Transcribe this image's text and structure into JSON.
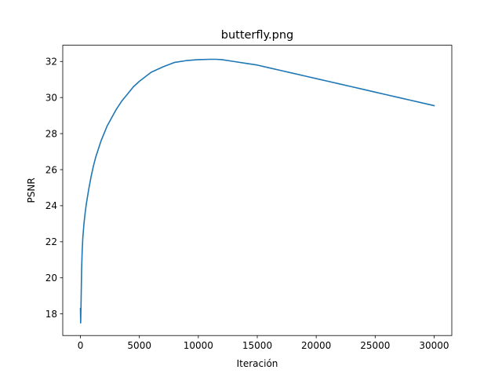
{
  "chart_data": {
    "type": "line",
    "title": "butterfly.png",
    "xlabel": "Iteración",
    "ylabel": "PSNR",
    "xlim": [
      -1500,
      31500
    ],
    "ylim": [
      16.8,
      32.9
    ],
    "xticks": [
      0,
      5000,
      10000,
      15000,
      20000,
      25000,
      30000
    ],
    "yticks": [
      18,
      20,
      22,
      24,
      26,
      28,
      30,
      32
    ],
    "grid": false,
    "line_color": "#1f77b4",
    "series": [
      {
        "x": [
          0,
          20,
          50,
          100,
          150,
          200,
          300,
          400,
          500,
          700,
          900,
          1100,
          1300,
          1500,
          1750,
          2000,
          2250,
          2500,
          3000,
          3500,
          4000,
          4500,
          5000,
          6000,
          7000,
          8000,
          9000,
          10000,
          11000,
          11500,
          12000,
          13000,
          14000,
          15000,
          16000,
          17000,
          18000,
          19000,
          20000,
          21000,
          22000,
          23000,
          24000,
          25000,
          26000,
          27000,
          28000,
          29000,
          30000
        ],
        "y": [
          18.3,
          17.5,
          18.5,
          20.5,
          21.5,
          22.2,
          23.0,
          23.6,
          24.1,
          24.9,
          25.6,
          26.2,
          26.7,
          27.1,
          27.6,
          28.0,
          28.4,
          28.7,
          29.3,
          29.8,
          30.2,
          30.6,
          30.9,
          31.4,
          31.7,
          31.95,
          32.05,
          32.1,
          32.12,
          32.12,
          32.1,
          32.0,
          31.9,
          31.8,
          31.65,
          31.5,
          31.35,
          31.2,
          31.05,
          30.9,
          30.75,
          30.6,
          30.45,
          30.3,
          30.15,
          30.0,
          29.85,
          29.7,
          29.55
        ]
      }
    ]
  }
}
